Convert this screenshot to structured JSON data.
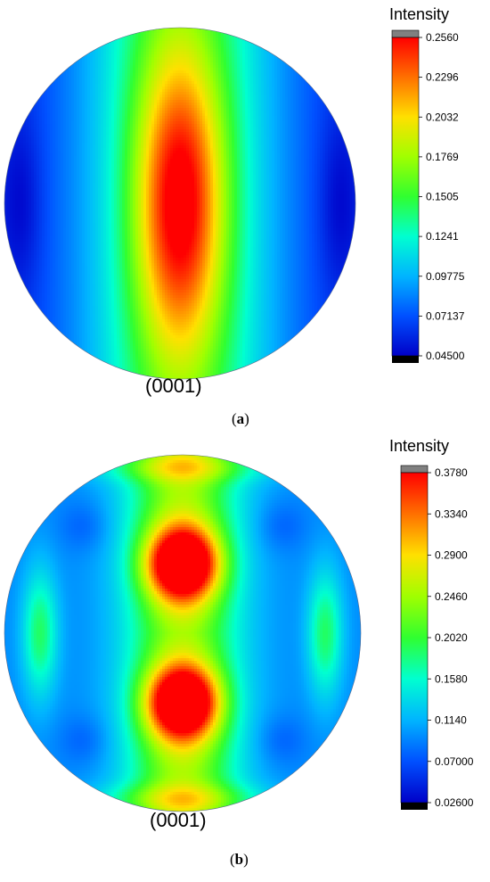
{
  "chart_data": [
    {
      "type": "heatmap",
      "panel_label": "a",
      "pole_label": "(0001)",
      "colorbar_title": "Intensity",
      "colorbar_ticks": [
        "0.2560",
        "0.2296",
        "0.2032",
        "0.1769",
        "0.1505",
        "0.1241",
        "0.09775",
        "0.07137",
        "0.04500"
      ],
      "range": [
        0.045,
        0.256
      ],
      "description_values": {
        "max": 0.256,
        "min": 0.045
      },
      "features": [
        {
          "kind": "elongated-maximum",
          "center": [
            0,
            0
          ],
          "value": 0.256
        },
        {
          "kind": "minimum",
          "center": [
            -0.95,
            0
          ],
          "value": 0.045
        },
        {
          "kind": "minimum",
          "center": [
            0.95,
            0
          ],
          "value": 0.045
        }
      ]
    },
    {
      "type": "heatmap",
      "panel_label": "b",
      "pole_label": "(0001)",
      "colorbar_title": "Intensity",
      "colorbar_ticks": [
        "0.3780",
        "0.3340",
        "0.2900",
        "0.2460",
        "0.2020",
        "0.1580",
        "0.1140",
        "0.07000",
        "0.02600"
      ],
      "range": [
        0.026,
        0.378
      ],
      "features": [
        {
          "kind": "maximum",
          "center": [
            0,
            -0.38
          ],
          "value": 0.378
        },
        {
          "kind": "maximum",
          "center": [
            0,
            0.38
          ],
          "value": 0.378
        },
        {
          "kind": "local-maximum",
          "center": [
            -0.82,
            0
          ],
          "value": 0.114
        },
        {
          "kind": "local-maximum",
          "center": [
            0.82,
            0
          ],
          "value": 0.114
        }
      ]
    }
  ]
}
